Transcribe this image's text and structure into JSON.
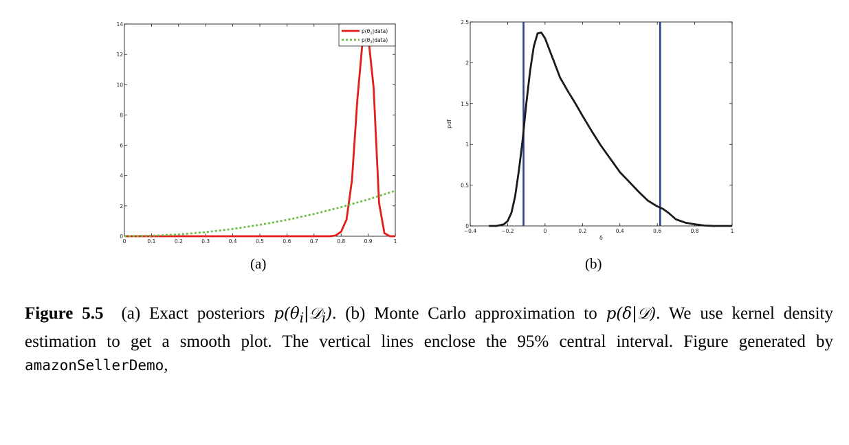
{
  "chart_data": [
    {
      "type": "line",
      "id": "a",
      "xlim": [
        0,
        1
      ],
      "ylim": [
        0,
        14
      ],
      "xticks": [
        0,
        0.1,
        0.2,
        0.3,
        0.4,
        0.5,
        0.6,
        0.7,
        0.8,
        0.9,
        1
      ],
      "xtick_labels": [
        "0",
        "0.1",
        "0.2",
        "0.3",
        "0.4",
        "0.5",
        "0.6",
        "0.7",
        "0.8",
        "0.9",
        "1"
      ],
      "yticks": [
        0,
        2,
        4,
        6,
        8,
        10,
        12,
        14
      ],
      "ytick_labels": [
        "0",
        "2",
        "4",
        "6",
        "8",
        "10",
        "12",
        "14"
      ],
      "legend_position": "top-right",
      "series": [
        {
          "name": "p(θ1|data)",
          "label_main": "p(θ",
          "label_sub": "1",
          "label_tail": "|data)",
          "color": "#e41c1c",
          "style": "solid",
          "x": [
            0,
            0.76,
            0.78,
            0.8,
            0.82,
            0.84,
            0.86,
            0.88,
            0.9,
            0.92,
            0.94,
            0.96,
            0.98,
            1
          ],
          "y": [
            0,
            0,
            0.05,
            0.3,
            1.1,
            3.7,
            9.0,
            13.0,
            13.2,
            9.8,
            2.2,
            0.2,
            0,
            0
          ]
        },
        {
          "name": "p(θ2|data)",
          "label_main": "p(θ",
          "label_sub": "2",
          "label_tail": "|data)",
          "color": "#6cbe45",
          "style": "dotted",
          "x": [
            0,
            0.1,
            0.2,
            0.3,
            0.4,
            0.5,
            0.6,
            0.7,
            0.8,
            0.9,
            1
          ],
          "y": [
            0,
            0.03,
            0.12,
            0.27,
            0.48,
            0.75,
            1.08,
            1.47,
            1.92,
            2.43,
            3.0
          ]
        }
      ]
    },
    {
      "type": "line",
      "id": "b",
      "xlabel": "δ",
      "ylabel": "pdf",
      "xlim": [
        -0.4,
        1
      ],
      "ylim": [
        0,
        2.5
      ],
      "xticks": [
        -0.4,
        -0.2,
        0,
        0.2,
        0.4,
        0.6,
        0.8,
        1
      ],
      "xtick_labels": [
        "−0.4",
        "−0.2",
        "0",
        "0.2",
        "0.4",
        "0.6",
        "0.8",
        "1"
      ],
      "yticks": [
        0,
        0.5,
        1,
        1.5,
        2,
        2.5
      ],
      "ytick_labels": [
        "0",
        "0.5",
        "1",
        "1.5",
        "2",
        "2.5"
      ],
      "series": [
        {
          "name": "kernel density",
          "color": "#1a1a1a",
          "x": [
            -0.3,
            -0.26,
            -0.22,
            -0.2,
            -0.18,
            -0.16,
            -0.14,
            -0.12,
            -0.1,
            -0.08,
            -0.06,
            -0.04,
            -0.02,
            0,
            0.02,
            0.05,
            0.08,
            0.12,
            0.16,
            0.2,
            0.25,
            0.3,
            0.35,
            0.4,
            0.45,
            0.5,
            0.55,
            0.6,
            0.63,
            0.66,
            0.7,
            0.75,
            0.8,
            0.85,
            0.9,
            0.95,
            1
          ],
          "y": [
            0,
            0,
            0.02,
            0.06,
            0.16,
            0.36,
            0.68,
            1.05,
            1.5,
            1.9,
            2.2,
            2.36,
            2.37,
            2.3,
            2.18,
            2.0,
            1.82,
            1.66,
            1.51,
            1.35,
            1.16,
            0.98,
            0.82,
            0.66,
            0.54,
            0.42,
            0.31,
            0.24,
            0.21,
            0.16,
            0.08,
            0.04,
            0.02,
            0.005,
            0,
            0,
            0
          ]
        }
      ],
      "vlines": [
        {
          "x": -0.115,
          "color": "#2b3f93"
        },
        {
          "x": 0.615,
          "color": "#2b3f93"
        }
      ]
    }
  ],
  "sublabels": {
    "a": "(a)",
    "b": "(b)"
  },
  "caption": {
    "figure_label": "Figure 5.5",
    "part1": "(a) Exact posteriors ",
    "math1": "p(θ",
    "math1_sub": "i",
    "math1_mid": "|𝒟",
    "math1_sub2": "i",
    "math1_end": ")",
    "part2": ". (b) Monte Carlo approximation to ",
    "math2": "p(δ|𝒟)",
    "part3": ". We use kernel density estimation to get a smooth plot. The vertical lines enclose the 95% central interval. Figure generated by ",
    "code": "amazonSellerDemo",
    "part4": ","
  }
}
